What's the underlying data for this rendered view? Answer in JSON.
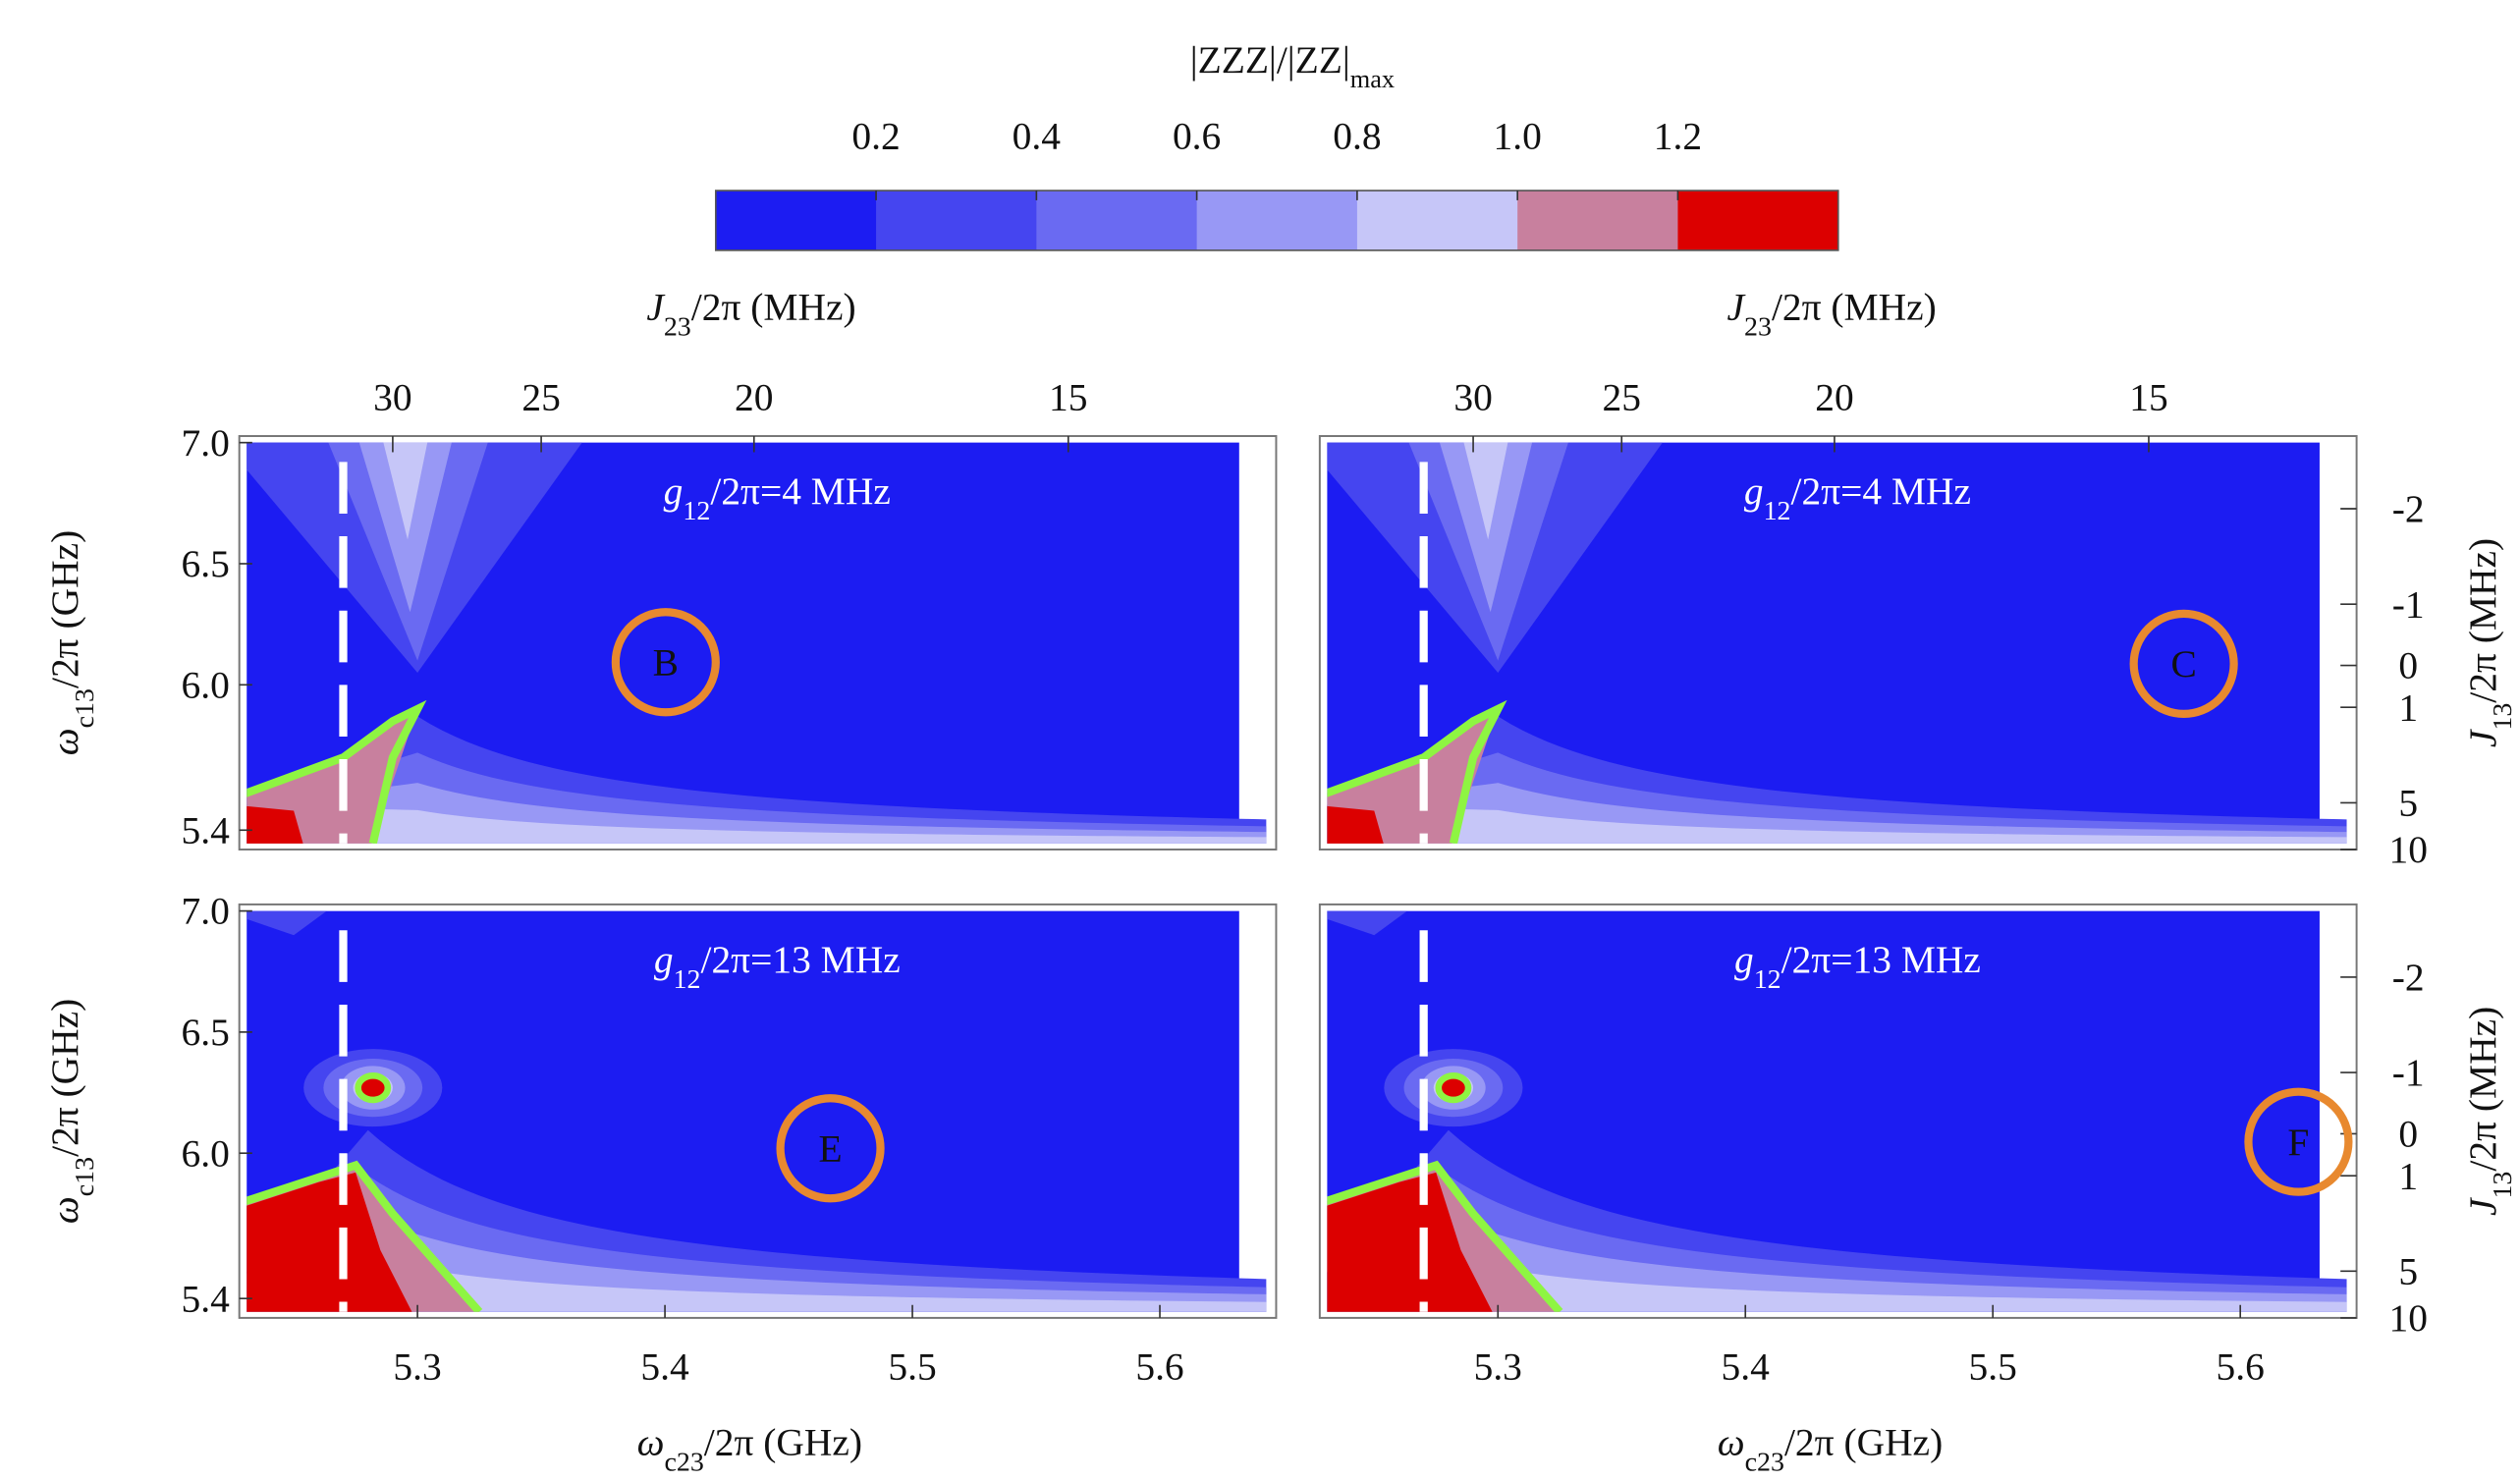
{
  "colorbar": {
    "title": "|ZZZ|/|ZZ|",
    "title_sub": "max",
    "clim": [
      0,
      1.4
    ],
    "ticks": [
      0.2,
      0.4,
      0.6,
      0.8,
      {
        "value": 1,
        "label": "1.0"
      },
      1.2
    ],
    "colors": [
      "#1c1cf2",
      "#4545f0",
      "#6a6af2",
      "#9898f5",
      "#c6c6f8",
      "#c8809e",
      "#dc0000"
    ]
  },
  "chart_data": [
    {
      "type": "contour",
      "annotation": {
        "main": "g",
        "sub": "12",
        "rest": "/2π=4 MHz"
      },
      "marker": "B",
      "xlim": [
        5.228,
        5.647
      ],
      "ylim": [
        5.32,
        7.027
      ],
      "yticks": [
        5.4,
        {
          "value": 6,
          "label": "6.0"
        },
        6.5,
        {
          "value": 7,
          "label": "7.0"
        }
      ],
      "ylabel": {
        "main": "ω",
        "sub": "c13",
        "rest": "/2π (GHz)"
      },
      "x2label": {
        "main": "J",
        "sub": "23",
        "rest": "/2π (MHz)"
      },
      "x2ticks": [
        {
          "value": 30,
          "at": 5.29
        },
        {
          "value": 25,
          "at": 5.35
        },
        {
          "value": 20,
          "at": 5.436
        },
        {
          "value": 15,
          "at": 5.563
        }
      ]
    },
    {
      "type": "contour",
      "annotation": {
        "main": "g",
        "sub": "12",
        "rest": "/2π=4 MHz"
      },
      "marker": "C",
      "xlim": [
        5.228,
        5.647
      ],
      "ylim": [
        5.32,
        7.027
      ],
      "x2label": {
        "main": "J",
        "sub": "23",
        "rest": "/2π (MHz)"
      },
      "x2ticks": [
        {
          "value": 30,
          "at": 5.29
        },
        {
          "value": 25,
          "at": 5.35
        },
        {
          "value": 20,
          "at": 5.436
        },
        {
          "value": 15,
          "at": 5.563
        }
      ],
      "y2label": {
        "main": "J",
        "sub": "13",
        "rest": "/2π (MHz)"
      },
      "y2ticks": [
        {
          "value": -2,
          "at": 6.727
        },
        {
          "value": -1,
          "at": 6.333
        },
        {
          "value": 0,
          "at": 6.08
        },
        {
          "value": 1,
          "at": 5.907
        },
        {
          "value": 5,
          "at": 5.513
        },
        {
          "value": 10,
          "at": 5.32
        }
      ]
    },
    {
      "type": "contour",
      "annotation": {
        "main": "g",
        "sub": "12",
        "rest": "/2π=13 MHz"
      },
      "marker": "E",
      "xlim": [
        5.228,
        5.647
      ],
      "ylim": [
        5.32,
        7.027
      ],
      "yticks": [
        5.4,
        {
          "value": 6,
          "label": "6.0"
        },
        6.5,
        {
          "value": 7,
          "label": "7.0"
        }
      ],
      "ylabel": {
        "main": "ω",
        "sub": "c13",
        "rest": "/2π (GHz)"
      },
      "xticks": [
        5.3,
        5.4,
        5.5,
        5.6
      ],
      "xlabel": {
        "main": "ω",
        "sub": "c23",
        "rest": "/2π (GHz)"
      }
    },
    {
      "type": "contour",
      "annotation": {
        "main": "g",
        "sub": "12",
        "rest": "/2π=13 MHz"
      },
      "marker": "F",
      "xlim": [
        5.228,
        5.647
      ],
      "ylim": [
        5.32,
        7.027
      ],
      "xticks": [
        5.3,
        5.4,
        5.5,
        5.6
      ],
      "xlabel": {
        "main": "ω",
        "sub": "c23",
        "rest": "/2π (GHz)"
      },
      "y2label": {
        "main": "J",
        "sub": "13",
        "rest": "/2π (MHz)"
      },
      "y2ticks": [
        {
          "value": -2,
          "at": 6.727
        },
        {
          "value": -1,
          "at": 6.333
        },
        {
          "value": 0,
          "at": 6.08
        },
        {
          "value": 1,
          "at": 5.907
        },
        {
          "value": 5,
          "at": 5.513
        },
        {
          "value": 10,
          "at": 5.32
        }
      ]
    }
  ]
}
